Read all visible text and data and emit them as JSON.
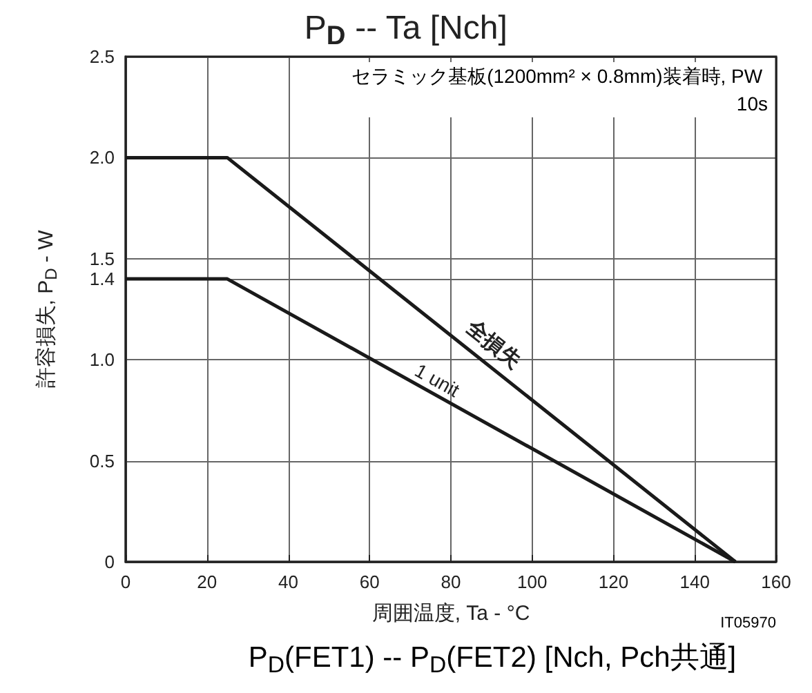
{
  "chart_data": {
    "type": "line",
    "title": "P$_{D}$ -- Ta [Nch]",
    "xlabel": "周囲温度, Ta - °C",
    "ylabel": "許容損失, P$_{D}$ - W",
    "annotations": [
      "セラミック基板(1200mm² × 0.8mm)装着時, PW 10s",
      "IT05970",
      "P$_{D}$(FET1) -- P$_{D}$(FET2) [Nch, Pch共通]"
    ],
    "series": [
      {
        "name": "全損失",
        "color": "#1a1a1a",
        "x": [
          0,
          25,
          150
        ],
        "values": [
          2.0,
          2.0,
          0
        ]
      },
      {
        "name": "1 unit",
        "color": "#1a1a1a",
        "x": [
          0,
          25,
          150
        ],
        "values": [
          1.4,
          1.4,
          0
        ]
      }
    ],
    "xlim": [
      0,
      160
    ],
    "xticks": [
      0,
      20,
      40,
      60,
      80,
      100,
      120,
      140,
      160
    ],
    "ylim": [
      0,
      2.5
    ],
    "yticks": [
      0,
      0.5,
      {
        "value": 1.0,
        "label": "1.0"
      },
      1.4,
      1.5,
      {
        "value": 2.0,
        "label": "2.0"
      },
      2.5
    ],
    "grid": true,
    "line_style": "solid",
    "marker": "none"
  }
}
